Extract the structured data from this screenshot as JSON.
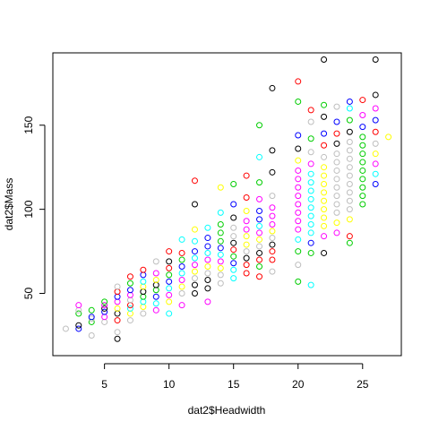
{
  "chart_data": {
    "type": "scatter",
    "title": "",
    "xlabel": "dat2$Headwidth",
    "ylabel": "dat2$Mass",
    "xlim": [
      1.0,
      28.0
    ],
    "ylim": [
      13.0,
      193.0
    ],
    "xticks": [
      5,
      10,
      15,
      20,
      25
    ],
    "yticks": [
      50,
      100,
      150
    ],
    "xtick_labels": [
      "5",
      "10",
      "15",
      "20",
      "25"
    ],
    "ytick_labels": [
      "50",
      "100",
      "150"
    ],
    "grid": false,
    "marker": "open-circle",
    "palette": [
      "#000000",
      "#ff0000",
      "#00cd00",
      "#0000ff",
      "#00ffff",
      "#ff00ff",
      "#ffff00",
      "#bebebe"
    ],
    "points": [
      [
        2,
        29
      ],
      [
        3,
        29
      ],
      [
        3,
        31
      ],
      [
        3,
        38
      ],
      [
        3,
        40
      ],
      [
        3,
        43
      ],
      [
        4,
        25
      ],
      [
        4,
        33
      ],
      [
        4,
        35
      ],
      [
        4,
        36
      ],
      [
        4,
        40
      ],
      [
        5,
        33
      ],
      [
        5,
        36
      ],
      [
        5,
        39
      ],
      [
        5,
        41
      ],
      [
        5,
        43
      ],
      [
        5,
        45
      ],
      [
        6,
        23
      ],
      [
        6,
        27
      ],
      [
        6,
        34
      ],
      [
        6,
        38
      ],
      [
        6,
        41
      ],
      [
        6,
        45
      ],
      [
        6,
        48
      ],
      [
        6,
        51
      ],
      [
        6,
        54
      ],
      [
        7,
        34
      ],
      [
        7,
        38
      ],
      [
        7,
        41
      ],
      [
        7,
        43
      ],
      [
        7,
        46
      ],
      [
        7,
        49
      ],
      [
        7,
        52
      ],
      [
        7,
        56
      ],
      [
        7,
        60
      ],
      [
        8,
        38
      ],
      [
        8,
        42
      ],
      [
        8,
        45
      ],
      [
        8,
        48
      ],
      [
        8,
        51
      ],
      [
        8,
        54
      ],
      [
        8,
        57
      ],
      [
        8,
        61
      ],
      [
        8,
        64
      ],
      [
        9,
        40
      ],
      [
        9,
        44
      ],
      [
        9,
        48
      ],
      [
        9,
        52
      ],
      [
        9,
        55
      ],
      [
        9,
        58
      ],
      [
        9,
        62
      ],
      [
        9,
        69
      ],
      [
        10,
        38
      ],
      [
        10,
        45
      ],
      [
        10,
        49
      ],
      [
        10,
        53
      ],
      [
        10,
        57
      ],
      [
        10,
        61
      ],
      [
        10,
        65
      ],
      [
        10,
        69
      ],
      [
        10,
        75
      ],
      [
        11,
        43
      ],
      [
        11,
        50
      ],
      [
        11,
        54
      ],
      [
        11,
        58
      ],
      [
        11,
        62
      ],
      [
        11,
        66
      ],
      [
        11,
        70
      ],
      [
        11,
        74
      ],
      [
        11,
        82
      ],
      [
        12,
        50
      ],
      [
        12,
        55
      ],
      [
        12,
        59
      ],
      [
        12,
        63
      ],
      [
        12,
        67
      ],
      [
        12,
        71
      ],
      [
        12,
        75
      ],
      [
        12,
        81
      ],
      [
        12,
        88
      ],
      [
        12,
        103
      ],
      [
        12,
        117
      ],
      [
        13,
        45
      ],
      [
        13,
        53
      ],
      [
        13,
        58
      ],
      [
        13,
        62
      ],
      [
        13,
        66
      ],
      [
        13,
        70
      ],
      [
        13,
        74
      ],
      [
        13,
        78
      ],
      [
        13,
        83
      ],
      [
        13,
        89
      ],
      [
        14,
        56
      ],
      [
        14,
        61
      ],
      [
        14,
        65
      ],
      [
        14,
        69
      ],
      [
        14,
        73
      ],
      [
        14,
        77
      ],
      [
        14,
        81
      ],
      [
        14,
        86
      ],
      [
        14,
        91
      ],
      [
        14,
        98
      ],
      [
        14,
        113
      ],
      [
        15,
        59
      ],
      [
        15,
        64
      ],
      [
        15,
        68
      ],
      [
        15,
        72
      ],
      [
        15,
        76
      ],
      [
        15,
        80
      ],
      [
        15,
        84
      ],
      [
        15,
        89
      ],
      [
        15,
        95
      ],
      [
        15,
        103
      ],
      [
        15,
        115
      ],
      [
        16,
        62
      ],
      [
        16,
        67
      ],
      [
        16,
        71
      ],
      [
        16,
        75
      ],
      [
        16,
        79
      ],
      [
        16,
        84
      ],
      [
        16,
        88
      ],
      [
        16,
        93
      ],
      [
        16,
        99
      ],
      [
        16,
        107
      ],
      [
        16,
        120
      ],
      [
        17,
        60
      ],
      [
        17,
        66
      ],
      [
        17,
        70
      ],
      [
        17,
        74
      ],
      [
        17,
        78
      ],
      [
        17,
        82
      ],
      [
        17,
        86
      ],
      [
        17,
        90
      ],
      [
        17,
        94
      ],
      [
        17,
        99
      ],
      [
        17,
        106
      ],
      [
        17,
        116
      ],
      [
        17,
        131
      ],
      [
        17,
        150
      ],
      [
        18,
        63
      ],
      [
        18,
        70
      ],
      [
        18,
        75
      ],
      [
        18,
        79
      ],
      [
        18,
        83
      ],
      [
        18,
        87
      ],
      [
        18,
        91
      ],
      [
        18,
        96
      ],
      [
        18,
        101
      ],
      [
        18,
        108
      ],
      [
        18,
        122
      ],
      [
        18,
        135
      ],
      [
        18,
        172
      ],
      [
        20,
        57
      ],
      [
        20,
        67
      ],
      [
        20,
        75
      ],
      [
        20,
        82
      ],
      [
        20,
        88
      ],
      [
        20,
        93
      ],
      [
        20,
        98
      ],
      [
        20,
        103
      ],
      [
        20,
        108
      ],
      [
        20,
        113
      ],
      [
        20,
        118
      ],
      [
        20,
        123
      ],
      [
        20,
        129
      ],
      [
        20,
        136
      ],
      [
        20,
        144
      ],
      [
        20,
        164
      ],
      [
        20,
        176
      ],
      [
        21,
        55
      ],
      [
        21,
        74
      ],
      [
        21,
        80
      ],
      [
        21,
        86
      ],
      [
        21,
        91
      ],
      [
        21,
        96
      ],
      [
        21,
        101
      ],
      [
        21,
        106
      ],
      [
        21,
        111
      ],
      [
        21,
        116
      ],
      [
        21,
        121
      ],
      [
        21,
        127
      ],
      [
        21,
        134
      ],
      [
        21,
        142
      ],
      [
        21,
        152
      ],
      [
        21,
        159
      ],
      [
        22,
        74
      ],
      [
        22,
        84
      ],
      [
        22,
        90
      ],
      [
        22,
        95
      ],
      [
        22,
        100
      ],
      [
        22,
        105
      ],
      [
        22,
        110
      ],
      [
        22,
        115
      ],
      [
        22,
        120
      ],
      [
        22,
        125
      ],
      [
        22,
        131
      ],
      [
        22,
        138
      ],
      [
        22,
        145
      ],
      [
        22,
        155
      ],
      [
        22,
        162
      ],
      [
        22,
        189
      ],
      [
        23,
        86
      ],
      [
        23,
        92
      ],
      [
        23,
        98
      ],
      [
        23,
        103
      ],
      [
        23,
        108
      ],
      [
        23,
        113
      ],
      [
        23,
        118
      ],
      [
        23,
        123
      ],
      [
        23,
        128
      ],
      [
        23,
        133
      ],
      [
        23,
        139
      ],
      [
        23,
        145
      ],
      [
        23,
        152
      ],
      [
        23,
        161
      ],
      [
        24,
        80
      ],
      [
        24,
        84
      ],
      [
        24,
        94
      ],
      [
        24,
        100
      ],
      [
        24,
        105
      ],
      [
        24,
        110
      ],
      [
        24,
        115
      ],
      [
        24,
        120
      ],
      [
        24,
        125
      ],
      [
        24,
        130
      ],
      [
        24,
        135
      ],
      [
        24,
        140
      ],
      [
        24,
        146
      ],
      [
        24,
        153
      ],
      [
        24,
        160
      ],
      [
        24,
        164
      ],
      [
        25,
        103
      ],
      [
        25,
        108
      ],
      [
        25,
        113
      ],
      [
        25,
        118
      ],
      [
        25,
        123
      ],
      [
        25,
        128
      ],
      [
        25,
        133
      ],
      [
        25,
        138
      ],
      [
        25,
        143
      ],
      [
        25,
        149
      ],
      [
        25,
        156
      ],
      [
        25,
        165
      ],
      [
        26,
        115
      ],
      [
        26,
        121
      ],
      [
        26,
        127
      ],
      [
        26,
        133
      ],
      [
        26,
        139
      ],
      [
        26,
        146
      ],
      [
        26,
        153
      ],
      [
        26,
        160
      ],
      [
        26,
        168
      ],
      [
        26,
        189
      ],
      [
        27,
        143
      ]
    ]
  }
}
